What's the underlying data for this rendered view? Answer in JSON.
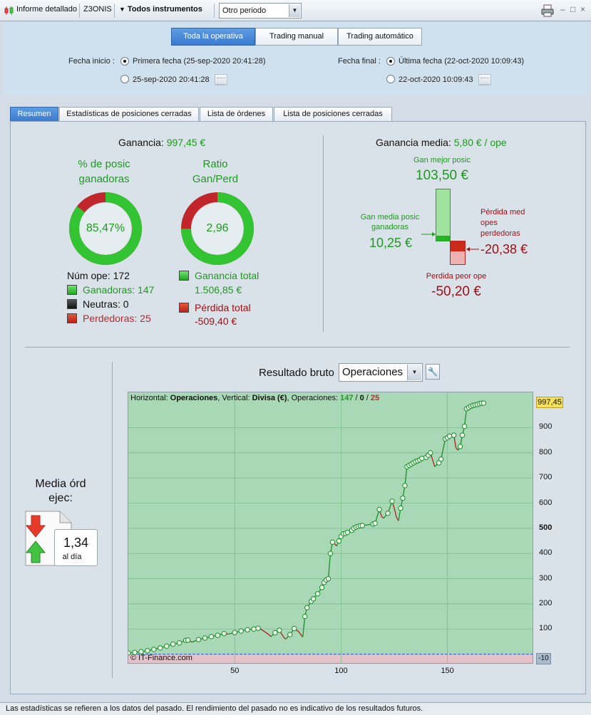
{
  "toolbar": {
    "report_label": "Informe detallado",
    "account": "Z3ONIS",
    "instruments_label": "Todos instrumentos",
    "period_select": "Otro periodo"
  },
  "mode_tabs": [
    "Toda la operativa",
    "Trading manual",
    "Trading automático"
  ],
  "dates": {
    "start_label": "Fecha inicio :",
    "start_option_1": "Primera fecha (25-sep-2020 20:41:28)",
    "start_option_2": "25-sep-2020 20:41:28",
    "end_label": "Fecha final :",
    "end_option_1": "Última fecha (22-oct-2020 10:09:43)",
    "end_option_2": "22-oct-2020 10:09:43"
  },
  "tabs": [
    "Resumen",
    "Estadísticas de posiciones cerradas",
    "Lista de órdenes",
    "Lista de posiciones cerradas"
  ],
  "summary": {
    "gain_label": "Ganancia:",
    "gain_value": "997,45 €",
    "win_pct_title_1": "% de posic",
    "win_pct_title_2": "ganadoras",
    "win_pct_value": "85,47%",
    "win_pct_fraction": 0.8547,
    "ratio_title_1": "Ratio",
    "ratio_title_2": "Gan/Perd",
    "ratio_value": "2,96",
    "ratio_fraction": 0.7475,
    "num_ope": "Núm ope: 172",
    "winners": "Ganadoras: 147",
    "neutral": "Neutras: 0",
    "losers": "Perdedoras: 25",
    "total_gain_label": "Ganancia total",
    "total_gain_value": "1.506,85 €",
    "total_loss_label": "Pérdida total",
    "total_loss_value": "-509,40 €"
  },
  "average": {
    "label": "Ganancia media:",
    "value": "5,80 € / ope",
    "best_label": "Gan mejor posic",
    "best_value": "103,50 €",
    "avg_win_label_1": "Gan media posic",
    "avg_win_label_2": "ganadoras",
    "avg_win_value": "10,25 €",
    "avg_loss_label_1": "Pérdida med",
    "avg_loss_label_2": "opes",
    "avg_loss_label_3": "perdedoras",
    "avg_loss_value": "-20,38 €",
    "worst_label": "Perdida peor ope",
    "worst_value": "-50,20 €"
  },
  "media_ord": {
    "title_1": "Media órd",
    "title_2": "ejec:",
    "value": "1,34",
    "unit": "al día"
  },
  "chart_header": {
    "title": "Resultado bruto",
    "select": "Operaciones"
  },
  "chart_info": {
    "horizontal_label": "Horizontal: ",
    "horizontal_value": "Operaciones",
    "vertical_label": ", Vertical: ",
    "vertical_value": "Divisa (€)",
    "ops_label": ", Operaciones: ",
    "ops_win": "147",
    "ops_sep1": " / ",
    "ops_neutral": "0",
    "ops_sep2": " / ",
    "ops_loss": "25",
    "copyright": "© IT-Finance.com",
    "last_value_label": "997,45",
    "min_value_label": "-10"
  },
  "chart_data": {
    "type": "line",
    "title": "Resultado bruto",
    "xlabel": "",
    "ylabel": "",
    "xlim": [
      0,
      190
    ],
    "ylim": [
      -35,
      1040
    ],
    "x_ticks": [
      50,
      100,
      150
    ],
    "y_ticks": [
      100,
      200,
      300,
      400,
      500,
      600,
      700,
      800,
      900
    ],
    "y_ticks_bold": [
      500
    ],
    "grid": true,
    "series": [
      {
        "points": [
          [
            0,
            5
          ],
          [
            3,
            7
          ],
          [
            6,
            10
          ],
          [
            9,
            14
          ],
          [
            12,
            19
          ],
          [
            15,
            25
          ],
          [
            18,
            32
          ],
          [
            21,
            40
          ],
          [
            24,
            45
          ],
          [
            27,
            55
          ],
          [
            28,
            56
          ],
          [
            30,
            48
          ],
          [
            33,
            58
          ],
          [
            36,
            64
          ],
          [
            39,
            70
          ],
          [
            42,
            75
          ],
          [
            45,
            82
          ],
          [
            47,
            80
          ],
          [
            50,
            86
          ],
          [
            53,
            92
          ],
          [
            56,
            97
          ],
          [
            59,
            100
          ],
          [
            61,
            103
          ],
          [
            62,
            101
          ],
          [
            64,
            90
          ],
          [
            66,
            78
          ],
          [
            67,
            70
          ],
          [
            69,
            85
          ],
          [
            71,
            95
          ],
          [
            73,
            68
          ],
          [
            74,
            60
          ],
          [
            76,
            78
          ],
          [
            78,
            102
          ],
          [
            80,
            90
          ],
          [
            82,
            68
          ],
          [
            83,
            150
          ],
          [
            84,
            185
          ],
          [
            86,
            210
          ],
          [
            87,
            220
          ],
          [
            89,
            240
          ],
          [
            91,
            265
          ],
          [
            92,
            285
          ],
          [
            93,
            295
          ],
          [
            94,
            300
          ],
          [
            95,
            400
          ],
          [
            96,
            445
          ],
          [
            97,
            438
          ],
          [
            98,
            430
          ],
          [
            99,
            450
          ],
          [
            100,
            468
          ],
          [
            101,
            478
          ],
          [
            102,
            480
          ],
          [
            103,
            484
          ],
          [
            105,
            492
          ],
          [
            106,
            500
          ],
          [
            107,
            505
          ],
          [
            108,
            508
          ],
          [
            109,
            510
          ],
          [
            110,
            511
          ],
          [
            115,
            517
          ],
          [
            116,
            520
          ],
          [
            118,
            575
          ],
          [
            119,
            548
          ],
          [
            120,
            540
          ],
          [
            122,
            560
          ],
          [
            124,
            608
          ],
          [
            125,
            580
          ],
          [
            126,
            545
          ],
          [
            127,
            530
          ],
          [
            128,
            580
          ],
          [
            129,
            620
          ],
          [
            130,
            670
          ],
          [
            131,
            745
          ],
          [
            132,
            750
          ],
          [
            133,
            755
          ],
          [
            134,
            760
          ],
          [
            135,
            765
          ],
          [
            136,
            768
          ],
          [
            137,
            772
          ],
          [
            138,
            778
          ],
          [
            140,
            782
          ],
          [
            141,
            790
          ],
          [
            142,
            800
          ],
          [
            144,
            745
          ],
          [
            146,
            760
          ],
          [
            147,
            775
          ],
          [
            149,
            855
          ],
          [
            150,
            860
          ],
          [
            151,
            866
          ],
          [
            153,
            870
          ],
          [
            154,
            820
          ],
          [
            155,
            810
          ],
          [
            156,
            825
          ],
          [
            157,
            870
          ],
          [
            158,
            905
          ],
          [
            159,
            975
          ],
          [
            160,
            980
          ],
          [
            161,
            985
          ],
          [
            162,
            988
          ],
          [
            163,
            990
          ],
          [
            164,
            992
          ],
          [
            165,
            995
          ],
          [
            166,
            997
          ],
          [
            167,
            997.45
          ]
        ]
      }
    ]
  },
  "status": "Las estadísticas se refieren a los datos del pasado. El rendimiento del pasado no es indicativo de los resultados futuros.",
  "colors": {
    "win": "#1e9a1e",
    "loss": "#c0262a",
    "accent": "#3a7bd0",
    "chart_positive_bg": "#a8d8b5",
    "chart_negative_bg": "#e3c3c9"
  }
}
